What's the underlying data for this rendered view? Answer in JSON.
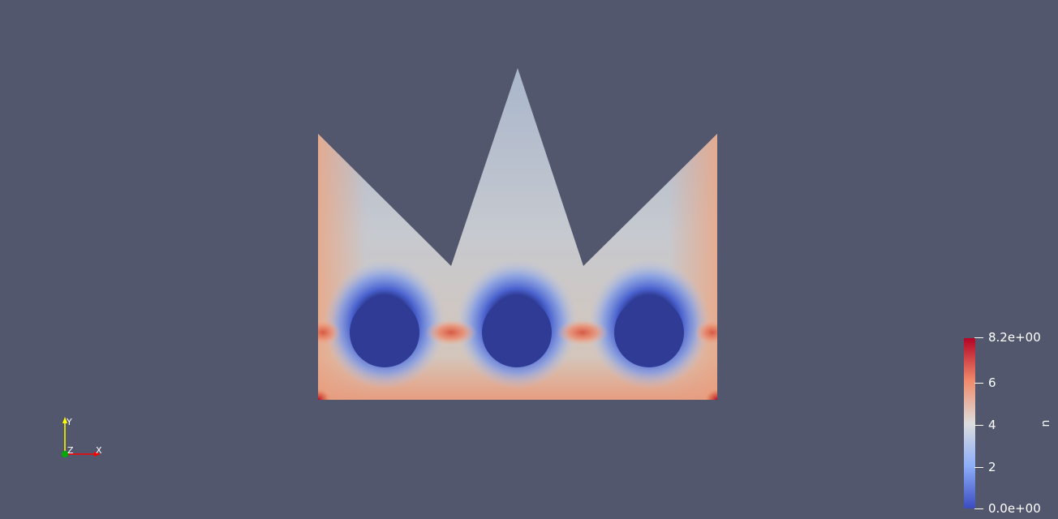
{
  "viewer": {
    "background_color": "#52576e"
  },
  "field": {
    "name": "u",
    "range": [
      0.0,
      8.2
    ],
    "colormap": "cool-to-warm"
  },
  "colorbar": {
    "title": "u",
    "max_label": "8.2e+00",
    "min_label": "0.0e+00",
    "ticks": [
      {
        "value": 8.2,
        "label": "8.2e+00"
      },
      {
        "value": 6,
        "label": "6"
      },
      {
        "value": 4,
        "label": "4"
      },
      {
        "value": 2,
        "label": "2"
      },
      {
        "value": 0,
        "label": "0.0e+00"
      }
    ],
    "colors": {
      "top": "#b40426",
      "mid": "#dddddd",
      "bottom": "#3b4cc0"
    }
  },
  "orientation_axes": {
    "x_label": "X",
    "y_label": "Y",
    "z_label": "Z",
    "x_color": "#ff0000",
    "y_color": "#ffff00",
    "z_color": "#00aa00"
  }
}
